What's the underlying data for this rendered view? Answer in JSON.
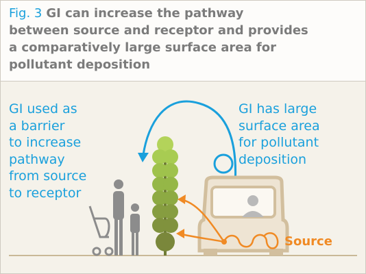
{
  "figure": {
    "label": "Fig. 3",
    "title_lines": [
      "GI can increase the pathway",
      "between source and receptor and provides",
      "a comparatively large surface area for",
      "pollutant deposition"
    ]
  },
  "annotations": {
    "barrier": [
      "GI used as",
      "a barrier",
      "to increase",
      "pathway",
      "from source",
      "to receptor"
    ],
    "surface": [
      "GI has large",
      "surface area",
      "for pollutant",
      "deposition"
    ],
    "source": "Source"
  }
}
